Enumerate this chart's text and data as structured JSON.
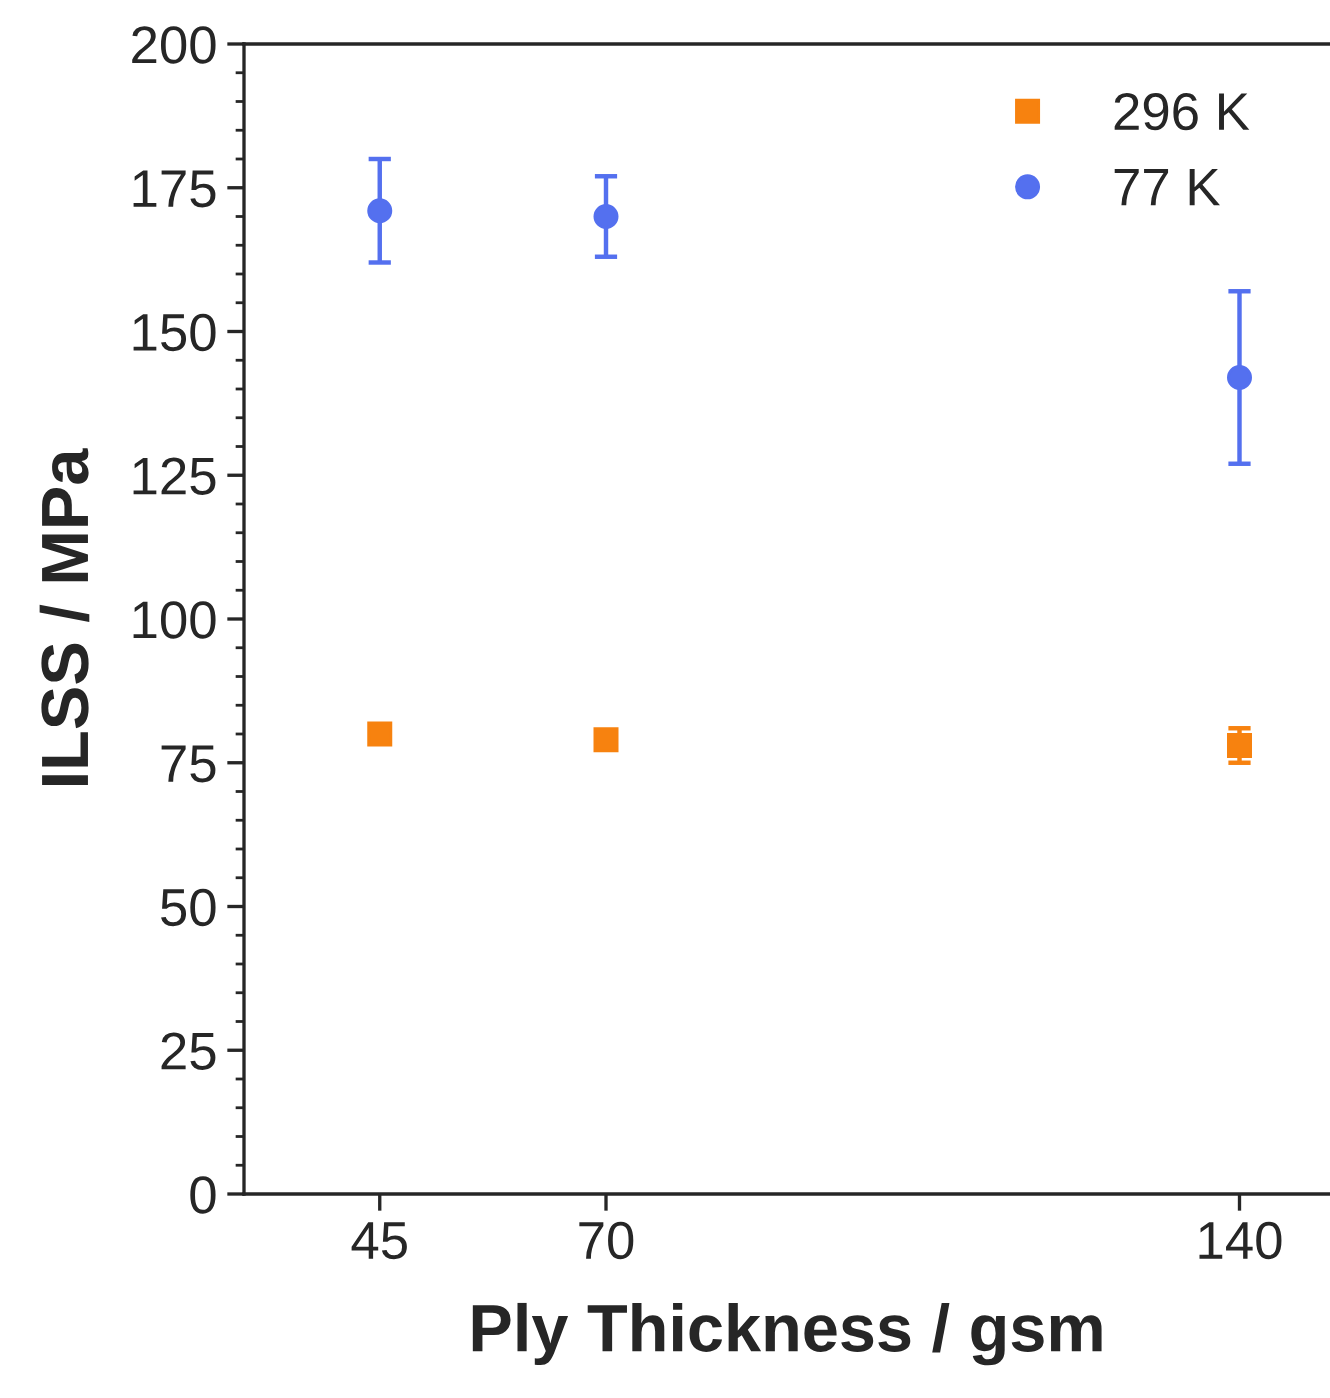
{
  "chart_data": {
    "type": "scatter",
    "xlabel": "Ply Thickness / gsm",
    "ylabel": "ILSS / MPa",
    "x": [
      45,
      70,
      140
    ],
    "series": [
      {
        "name": "296 K",
        "color": "#f7820f",
        "marker": "square",
        "values": [
          80,
          79,
          78
        ],
        "errors": [
          1,
          1,
          3
        ]
      },
      {
        "name": "77 K",
        "color": "#5470ef",
        "marker": "circle",
        "values": [
          171,
          170,
          142
        ],
        "errors": [
          9,
          7,
          15
        ]
      }
    ],
    "xlim": [
      30,
      150
    ],
    "xticks": [
      45,
      70,
      140
    ],
    "ylim": [
      0,
      200
    ],
    "yticks": [
      0,
      25,
      50,
      75,
      100,
      125,
      150,
      175,
      200
    ],
    "grid": false,
    "legend": "top right"
  }
}
